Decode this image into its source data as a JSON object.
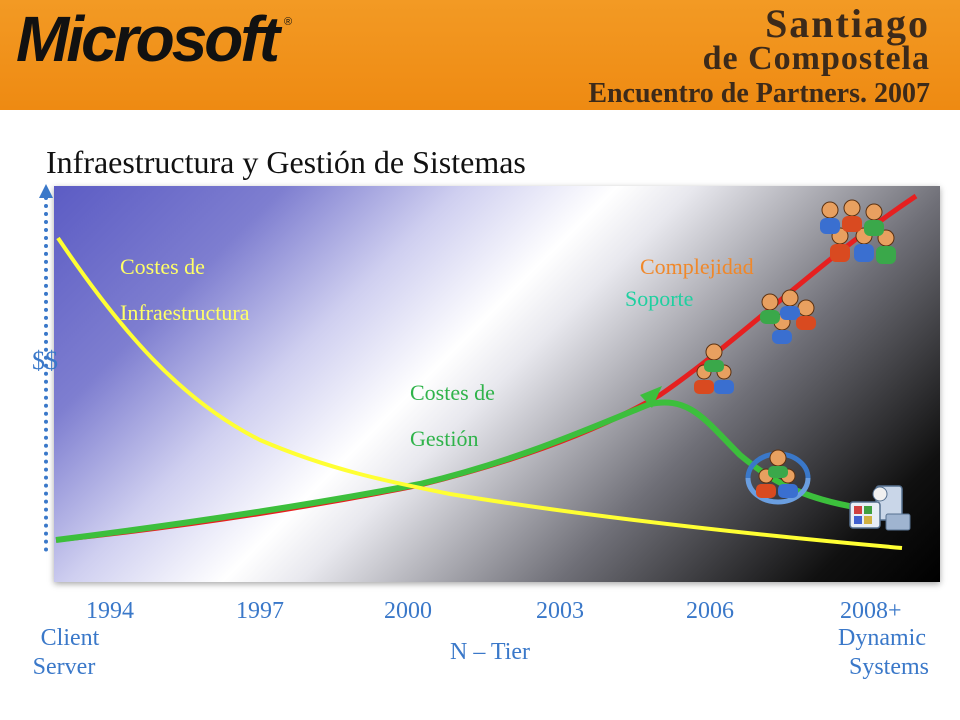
{
  "header": {
    "logo": "Microsoft",
    "trademark": "®",
    "event_line1": "Santiago",
    "event_line2": "de Compostela",
    "event_line3": "Encuentro de Partners. 2007",
    "background_color": "#ee8a12"
  },
  "slide": {
    "title": "Infraestructura y Gestión de Sistemas",
    "y_label": "$$"
  },
  "chart_data": {
    "type": "line",
    "title": "",
    "xlabel": "",
    "ylabel": "$$",
    "categories": [
      "1994",
      "1997",
      "2000",
      "2003",
      "2006",
      "2008+"
    ],
    "era_labels": [
      "Client Server",
      "N – Tier",
      "Dynamic Systems"
    ],
    "series": [
      {
        "name": "Costes de Infraestructura",
        "color": "#ffff33",
        "trend": "decreasing"
      },
      {
        "name": "Costes de Gestión",
        "color": "#3cbf3c",
        "trend": "increasing then decreasing after 2006"
      },
      {
        "name": "Complejidad",
        "color": "#e62020",
        "trend": "increasing"
      }
    ],
    "annotations": [
      "Costes de",
      "Infraestructura",
      "Costes de",
      "Gestión",
      "Complejidad",
      "Soporte"
    ]
  },
  "labels": {
    "infra_line1": "Costes de",
    "infra_line2": "Infraestructura",
    "gestion_line1": "Costes de",
    "gestion_line2": "Gestión",
    "complejidad": "Complejidad",
    "soporte": "Soporte"
  },
  "axis": {
    "years": [
      "1994",
      "1997",
      "2000",
      "2003",
      "2006",
      "2008+"
    ],
    "era_left_1": "Client",
    "era_left_2": "Server",
    "era_mid": "N – Tier",
    "era_right_1": "Dynamic",
    "era_right_2": "Systems"
  },
  "icons": [
    "people-group-icon",
    "server-icon"
  ]
}
